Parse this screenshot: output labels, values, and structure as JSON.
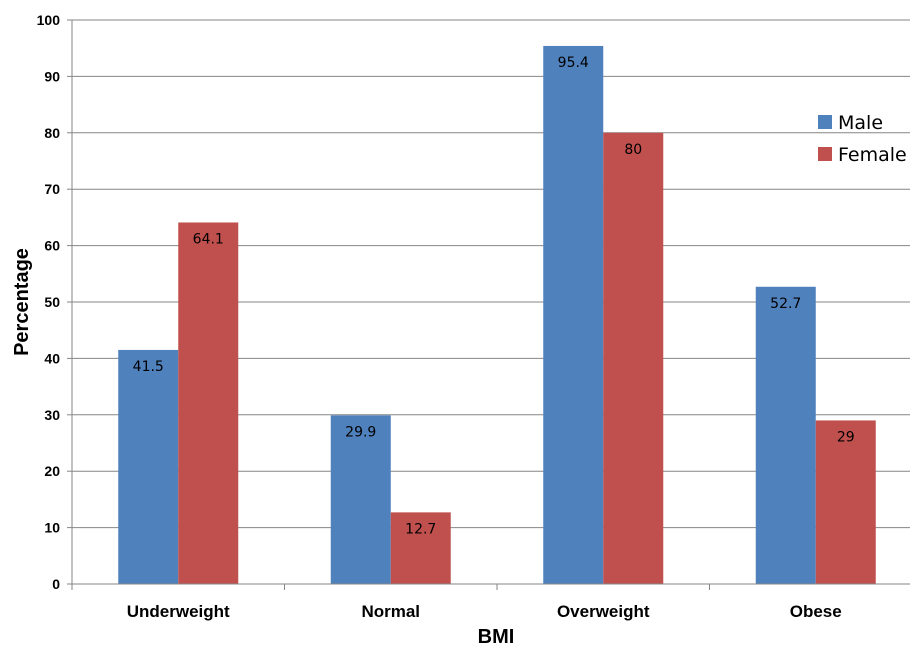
{
  "chart_data": {
    "type": "bar",
    "categories": [
      "Underweight",
      "Normal",
      "Overweight",
      "Obese"
    ],
    "series": [
      {
        "name": "Male",
        "values": [
          41.5,
          29.9,
          95.4,
          52.7
        ],
        "color": "#4F81BD"
      },
      {
        "name": "Female",
        "values": [
          64.1,
          12.7,
          80,
          29
        ],
        "color": "#C0504D"
      }
    ],
    "data_labels": {
      "Male": [
        "41.5",
        "29.9",
        "95.4",
        "52.7"
      ],
      "Female": [
        "64.1",
        "12.7",
        "80",
        "29"
      ]
    },
    "title": "",
    "xlabel": "BMI",
    "ylabel": "Percentage",
    "ylim": [
      0,
      100
    ],
    "yticks": [
      "0",
      "10",
      "20",
      "30",
      "40",
      "50",
      "60",
      "70",
      "80",
      "90",
      "100"
    ],
    "grid": true,
    "legend_position": "right",
    "gridline_color": "#868686"
  }
}
